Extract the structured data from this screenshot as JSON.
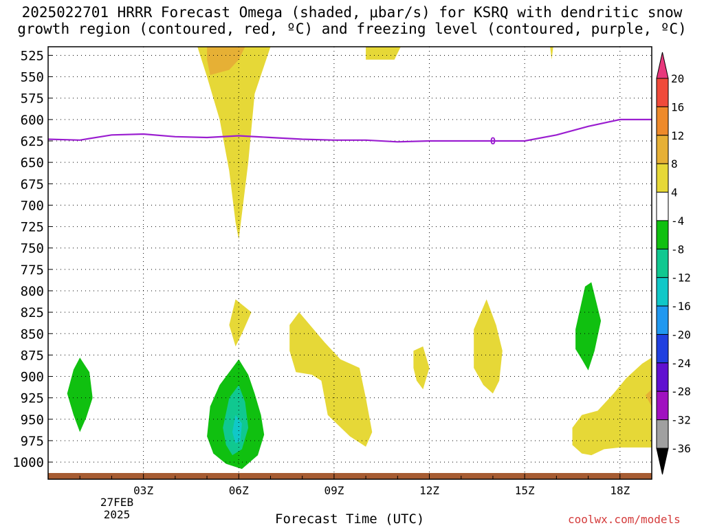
{
  "chart_data": {
    "type": "contour",
    "title_line1": "2025022701 HRRR Forecast Omega (shaded, μbar/s) for KSRQ with dendritic snow",
    "title_line2": "growth region (contoured, red, ºC) and freezing level (contoured, purple, ºC)",
    "xlabel": "Forecast Time (UTC)",
    "x_ticks": [
      "03Z",
      "06Z",
      "09Z",
      "12Z",
      "15Z",
      "18Z"
    ],
    "x_tick_hours": [
      3,
      6,
      9,
      12,
      15,
      18
    ],
    "x_range_hours": [
      0,
      19
    ],
    "x_sub_date": "27FEB",
    "x_sub_year": "2025",
    "y_ticks": [
      525,
      550,
      575,
      600,
      625,
      650,
      675,
      700,
      725,
      750,
      775,
      800,
      825,
      850,
      875,
      900,
      925,
      950,
      975,
      1000
    ],
    "y_range_hpa": [
      515,
      1020
    ],
    "grid": true,
    "colorbar_labels": [
      "20",
      "16",
      "12",
      "8",
      "4",
      "-4",
      "-8",
      "-12",
      "-16",
      "-20",
      "-24",
      "-28",
      "-32",
      "-36"
    ],
    "colorbar_colors": [
      "#e8387c",
      "#f04a3a",
      "#ee8a2a",
      "#e6b035",
      "#e6d837",
      "#ffffff",
      "#10c010",
      "#10c890",
      "#10c8c8",
      "#2098f0",
      "#2040e0",
      "#6010d0",
      "#a010c0",
      "#a0a0a0",
      "#000000"
    ],
    "freezing_level": {
      "label": "0",
      "hours": [
        0,
        1,
        2,
        3,
        4,
        5,
        6,
        7,
        8,
        9,
        10,
        11,
        12,
        13,
        14,
        15,
        16,
        17,
        18,
        19
      ],
      "hpa": [
        623,
        624,
        618,
        617,
        620,
        621,
        619,
        621,
        623,
        624,
        624,
        626,
        625,
        625,
        625,
        625,
        618,
        608,
        600,
        600
      ]
    },
    "omega_regions": [
      {
        "color": "#e6d837",
        "points": [
          [
            4.7,
            515
          ],
          [
            7.0,
            515
          ],
          [
            6.5,
            570
          ],
          [
            6.3,
            650
          ],
          [
            6.1,
            710
          ],
          [
            6.0,
            740
          ],
          [
            5.9,
            720
          ],
          [
            5.7,
            660
          ],
          [
            5.4,
            600
          ],
          [
            5.0,
            550
          ]
        ]
      },
      {
        "color": "#e6b035",
        "points": [
          [
            5.0,
            515
          ],
          [
            6.2,
            515
          ],
          [
            6.0,
            530
          ],
          [
            5.7,
            542
          ],
          [
            5.1,
            548
          ],
          [
            5.0,
            530
          ]
        ]
      },
      {
        "color": "#e6d837",
        "points": [
          [
            10.0,
            515
          ],
          [
            11.1,
            515
          ],
          [
            10.9,
            530
          ],
          [
            10.0,
            530
          ]
        ]
      },
      {
        "color": "#e6d837",
        "points": [
          [
            15.8,
            515
          ],
          [
            15.9,
            515
          ],
          [
            15.85,
            530
          ]
        ]
      },
      {
        "color": "#e6d837",
        "points": [
          [
            5.9,
            810
          ],
          [
            6.4,
            825
          ],
          [
            6.1,
            850
          ],
          [
            5.9,
            865
          ],
          [
            5.7,
            840
          ]
        ]
      },
      {
        "color": "#e6d837",
        "points": [
          [
            7.6,
            840
          ],
          [
            7.9,
            825
          ],
          [
            8.7,
            860
          ],
          [
            9.2,
            880
          ],
          [
            9.8,
            890
          ],
          [
            10.0,
            925
          ],
          [
            10.2,
            965
          ],
          [
            10.0,
            982
          ],
          [
            9.5,
            970
          ],
          [
            8.8,
            945
          ],
          [
            8.6,
            905
          ],
          [
            8.3,
            898
          ],
          [
            7.8,
            895
          ],
          [
            7.6,
            870
          ]
        ]
      },
      {
        "color": "#e6d837",
        "points": [
          [
            11.5,
            870
          ],
          [
            11.8,
            865
          ],
          [
            12.0,
            890
          ],
          [
            11.8,
            915
          ],
          [
            11.6,
            905
          ],
          [
            11.5,
            890
          ]
        ]
      },
      {
        "color": "#e6d837",
        "points": [
          [
            13.4,
            845
          ],
          [
            13.8,
            810
          ],
          [
            14.1,
            840
          ],
          [
            14.3,
            870
          ],
          [
            14.2,
            905
          ],
          [
            14.0,
            920
          ],
          [
            13.7,
            910
          ],
          [
            13.4,
            890
          ]
        ]
      },
      {
        "color": "#e6d837",
        "points": [
          [
            16.5,
            960
          ],
          [
            16.8,
            945
          ],
          [
            17.3,
            940
          ],
          [
            17.8,
            920
          ],
          [
            18.2,
            902
          ],
          [
            18.7,
            885
          ],
          [
            19.0,
            878
          ],
          [
            19.0,
            983
          ],
          [
            18.0,
            983
          ],
          [
            17.5,
            985
          ],
          [
            17.1,
            992
          ],
          [
            16.8,
            990
          ],
          [
            16.5,
            980
          ]
        ]
      },
      {
        "color": "#e6b035",
        "points": [
          [
            18.8,
            922
          ],
          [
            19.0,
            915
          ],
          [
            19.0,
            935
          ]
        ]
      },
      {
        "color": "#10c010",
        "points": [
          [
            16.6,
            845
          ],
          [
            16.9,
            795
          ],
          [
            17.1,
            790
          ],
          [
            17.4,
            835
          ],
          [
            17.2,
            870
          ],
          [
            17.0,
            893
          ],
          [
            16.8,
            880
          ],
          [
            16.6,
            868
          ]
        ]
      },
      {
        "color": "#10c010",
        "points": [
          [
            0.6,
            920
          ],
          [
            0.8,
            892
          ],
          [
            1.0,
            878
          ],
          [
            1.3,
            895
          ],
          [
            1.4,
            925
          ],
          [
            1.2,
            948
          ],
          [
            1.0,
            965
          ],
          [
            0.8,
            945
          ]
        ]
      },
      {
        "color": "#10c010",
        "points": [
          [
            5.0,
            970
          ],
          [
            5.1,
            935
          ],
          [
            5.4,
            910
          ],
          [
            5.8,
            890
          ],
          [
            6.0,
            880
          ],
          [
            6.3,
            898
          ],
          [
            6.5,
            920
          ],
          [
            6.7,
            945
          ],
          [
            6.8,
            968
          ],
          [
            6.6,
            992
          ],
          [
            6.1,
            1008
          ],
          [
            5.6,
            1002
          ],
          [
            5.2,
            990
          ]
        ]
      },
      {
        "color": "#10c890",
        "points": [
          [
            5.5,
            960
          ],
          [
            5.7,
            925
          ],
          [
            6.0,
            910
          ],
          [
            6.2,
            930
          ],
          [
            6.3,
            960
          ],
          [
            6.1,
            985
          ],
          [
            5.8,
            992
          ],
          [
            5.6,
            980
          ]
        ]
      },
      {
        "color": "#10c8c8",
        "points": [
          [
            5.8,
            965
          ],
          [
            5.9,
            945
          ],
          [
            6.1,
            955
          ],
          [
            6.05,
            975
          ],
          [
            5.9,
            978
          ]
        ]
      }
    ],
    "ground_color": "#a65c32",
    "credit": "coolwx.com/models"
  }
}
